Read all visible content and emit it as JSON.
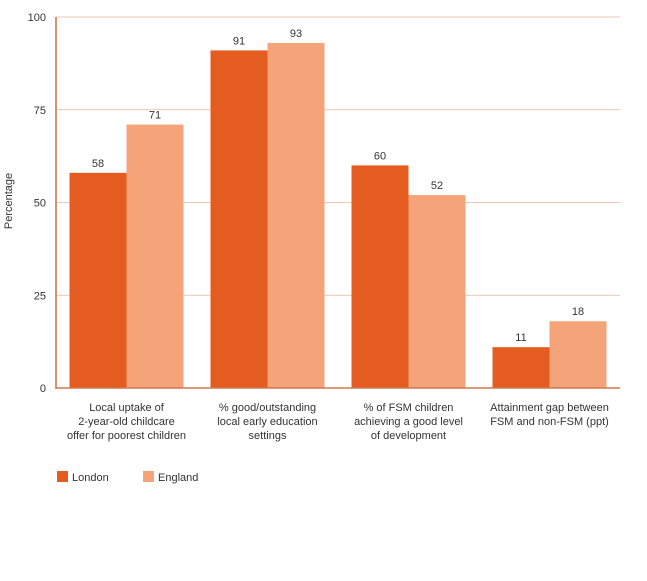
{
  "chart_data": {
    "type": "bar",
    "ylabel": "Percentage",
    "ylim": [
      0,
      100
    ],
    "yticks": [
      0,
      25,
      50,
      75,
      100
    ],
    "grid": true,
    "legend_position": "bottom-left",
    "categories": [
      [
        "Local uptake of",
        "2-year-old childcare",
        "offer for poorest children"
      ],
      [
        "% good/outstanding",
        "local early education",
        "settings"
      ],
      [
        "% of FSM children",
        "achieving a good level",
        "of development"
      ],
      [
        "Attainment gap between",
        "FSM and non-FSM (ppt)"
      ]
    ],
    "series": [
      {
        "name": "London",
        "color": "#e55c20",
        "values": [
          58,
          91,
          60,
          11
        ]
      },
      {
        "name": "England",
        "color": "#f4a478",
        "values": [
          71,
          93,
          52,
          18
        ]
      }
    ]
  }
}
